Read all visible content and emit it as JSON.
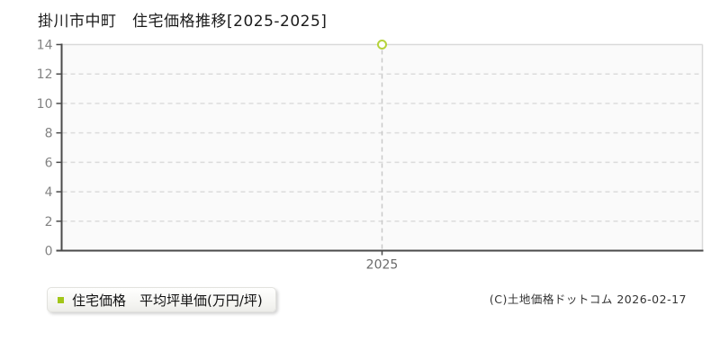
{
  "header": {
    "title": "掛川市中町　住宅価格推移[2025-2025]"
  },
  "chart_data": {
    "type": "scatter",
    "title": "掛川市中町 住宅価格推移[2025-2025]",
    "x": [
      2025
    ],
    "series": [
      {
        "name": "住宅価格 平均坪単価(万円/坪)",
        "values": [
          14
        ]
      }
    ],
    "xlabel": "",
    "ylabel": "",
    "ylim": [
      0,
      14
    ],
    "yticks": [
      0,
      2,
      4,
      6,
      8,
      10,
      12,
      14
    ],
    "xticks": [
      "2025"
    ],
    "grid": "horizontal-dashed",
    "legend_position": "bottom-left",
    "marker": "open-circle",
    "drop_line": "dashed-vertical",
    "colors": {
      "marker": "#b5d33b",
      "legend_marker": "#a2c619"
    }
  },
  "legend": {
    "label": "住宅価格　平均坪単価(万円/坪)"
  },
  "footer": {
    "copyright": "(C)土地価格ドットコム 2026-02-17"
  }
}
